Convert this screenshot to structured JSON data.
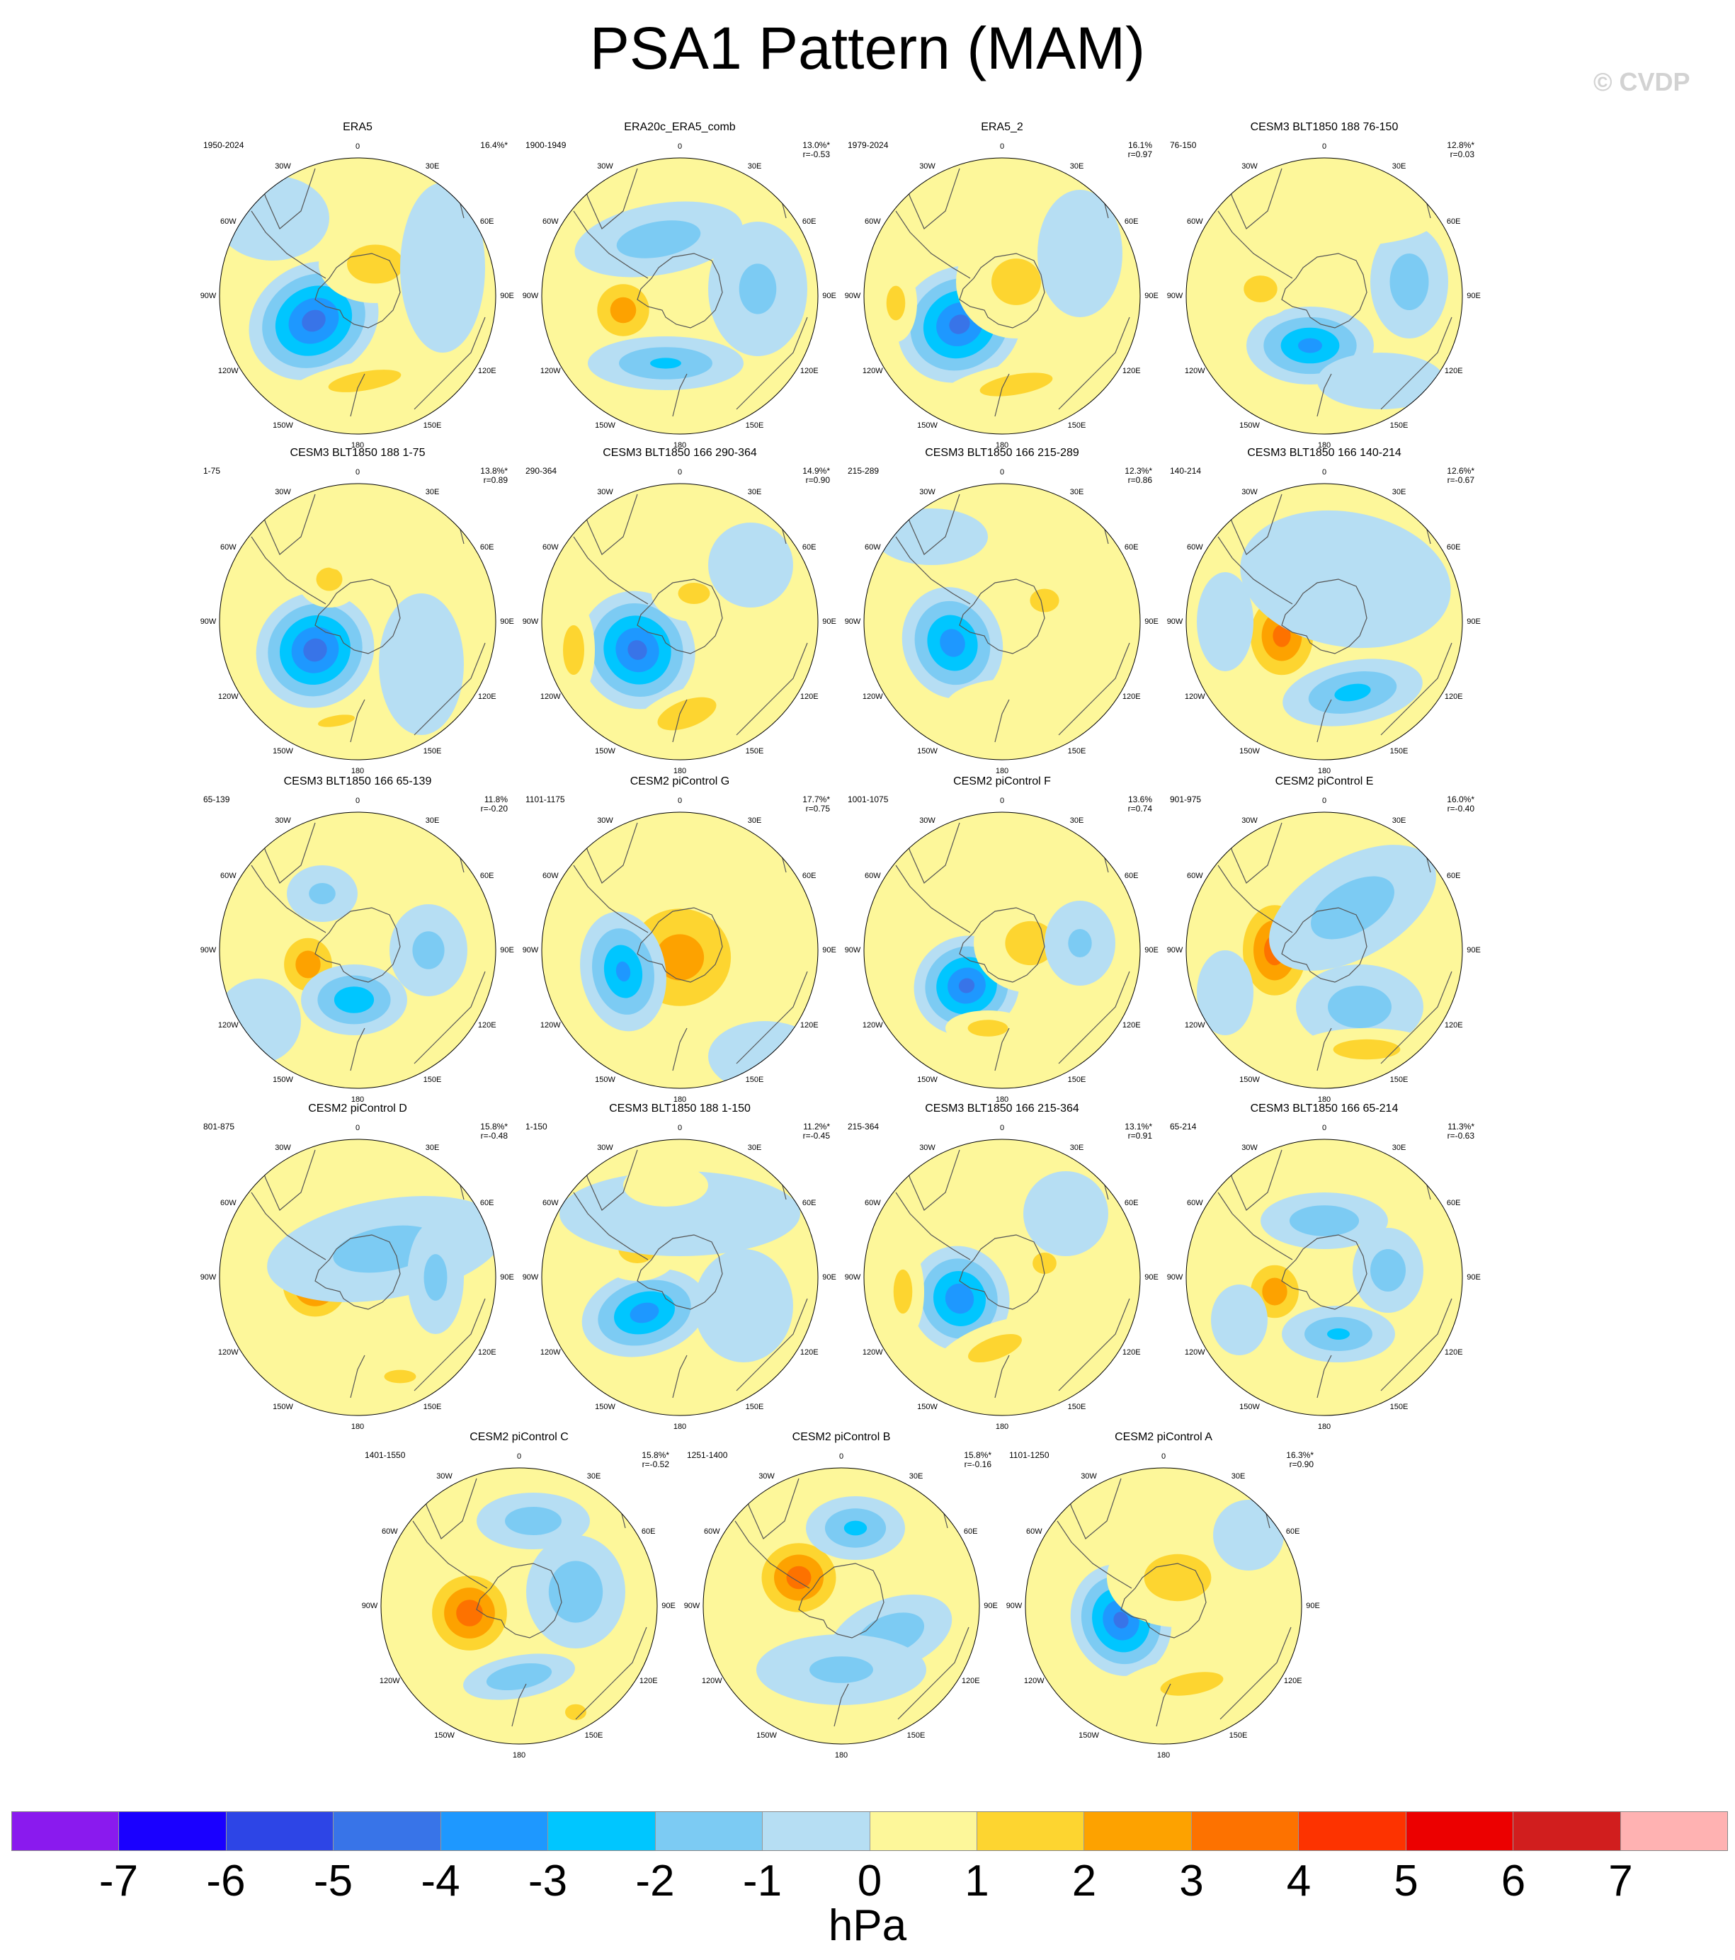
{
  "title": "PSA1 Pattern (MAM)",
  "watermark": "© CVDP",
  "longitude_labels": [
    "0",
    "30E",
    "60E",
    "90E",
    "120E",
    "150E",
    "180",
    "150W",
    "120W",
    "90W",
    "60W",
    "30W"
  ],
  "colors": {
    "ocean_zero": "#fdf79a",
    "land_outline": "#555555",
    "levels": [
      "#8a1aee",
      "#1a00ff",
      "#2d45e6",
      "#3874e8",
      "#1e98ff",
      "#00c6ff",
      "#7ccbf3",
      "#b6def3",
      "#fdf79a",
      "#fdd530",
      "#fda200",
      "#fd7200",
      "#fd3300",
      "#ec0000",
      "#d11e1e",
      "#ffb2b2"
    ]
  },
  "colorbar": {
    "labels": [
      "-7",
      "-6",
      "-5",
      "-4",
      "-3",
      "-2",
      "-1",
      "0",
      "1",
      "2",
      "3",
      "4",
      "5",
      "6",
      "7"
    ],
    "units": "hPa"
  },
  "chart_data": {
    "type": "heatmap",
    "projection": "south polar stereographic",
    "variable": "sea level pressure anomaly",
    "units": "hPa",
    "color_levels": [
      -7,
      -6,
      -5,
      -4,
      -3,
      -2,
      -1,
      0,
      1,
      2,
      3,
      4,
      5,
      6,
      7
    ],
    "panels": [
      {
        "title": "ERA5",
        "period": "1950-2024",
        "variance": "16.4%*",
        "r": ""
      },
      {
        "title": "ERA20c_ERA5_comb",
        "period": "1900-1949",
        "variance": "13.0%*",
        "r": "r=-0.53"
      },
      {
        "title": "ERA5_2",
        "period": "1979-2024",
        "variance": "16.1%",
        "r": "r=0.97"
      },
      {
        "title": "CESM3 BLT1850 188 76-150",
        "period": "76-150",
        "variance": "12.8%*",
        "r": "r=0.03"
      },
      {
        "title": "CESM3 BLT1850 188 1-75",
        "period": "1-75",
        "variance": "13.8%*",
        "r": "r=0.89"
      },
      {
        "title": "CESM3 BLT1850 166 290-364",
        "period": "290-364",
        "variance": "14.9%*",
        "r": "r=0.90"
      },
      {
        "title": "CESM3 BLT1850 166 215-289",
        "period": "215-289",
        "variance": "12.3%*",
        "r": "r=0.86"
      },
      {
        "title": "CESM3 BLT1850 166 140-214",
        "period": "140-214",
        "variance": "12.6%*",
        "r": "r=-0.67"
      },
      {
        "title": "CESM3 BLT1850 166 65-139",
        "period": "65-139",
        "variance": "11.8%",
        "r": "r=-0.20"
      },
      {
        "title": "CESM2 piControl G",
        "period": "1101-1175",
        "variance": "17.7%*",
        "r": "r=0.75"
      },
      {
        "title": "CESM2 piControl F",
        "period": "1001-1075",
        "variance": "13.6%",
        "r": "r=0.74"
      },
      {
        "title": "CESM2 piControl E",
        "period": "901-975",
        "variance": "16.0%*",
        "r": "r=-0.40"
      },
      {
        "title": "CESM2 piControl D",
        "period": "801-875",
        "variance": "15.8%*",
        "r": "r=-0.48"
      },
      {
        "title": "CESM3 BLT1850 188 1-150",
        "period": "1-150",
        "variance": "11.2%*",
        "r": "r=-0.45"
      },
      {
        "title": "CESM3 BLT1850 166 215-364",
        "period": "215-364",
        "variance": "13.1%*",
        "r": "r=0.91"
      },
      {
        "title": "CESM3 BLT1850 166 65-214",
        "period": "65-214",
        "variance": "11.3%*",
        "r": "r=-0.63"
      },
      {
        "title": "CESM2 piControl C",
        "period": "1401-1550",
        "variance": "15.8%*",
        "r": "r=-0.52"
      },
      {
        "title": "CESM2 piControl B",
        "period": "1251-1400",
        "variance": "15.8%*",
        "r": "r=-0.16"
      },
      {
        "title": "CESM2 piControl A",
        "period": "1101-1250",
        "variance": "16.3%*",
        "r": "r=0.90"
      }
    ]
  }
}
